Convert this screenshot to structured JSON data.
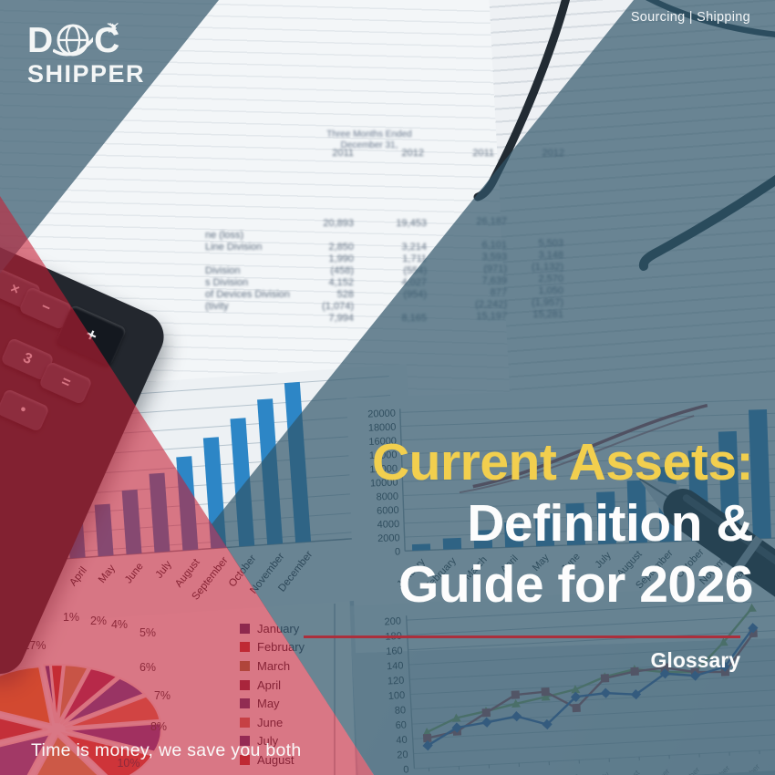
{
  "logo": {
    "d": "D",
    "c": "C",
    "shipper": "SHIPPER"
  },
  "header": {
    "services": "Sourcing | Shipping"
  },
  "title": {
    "line1": "Current Assets:",
    "line2": "Definition &",
    "line3": "Guide for 2026",
    "accent_color": "#f2cf4e"
  },
  "glossary": {
    "label": "Glossary"
  },
  "tagline": {
    "text": "Time is money, we save you both"
  },
  "colors": {
    "teal_overlay": "#30566a",
    "red_overlay": "#c81e34",
    "rule_red": "#ab2f3c",
    "bar_blue": "#2d82c4"
  },
  "calculator": {
    "keys": [
      "×",
      "−",
      "+",
      "3",
      "=",
      "•"
    ]
  },
  "spreadsheet": {
    "header_note": "Three Months Ended\nDecember 31,",
    "col_years": [
      "2011",
      "2012",
      "2011",
      "2012"
    ],
    "row_labels": [
      "ne (loss)",
      "Line Division",
      "",
      "Division",
      "s Division",
      "of Devices Division",
      "(tivity"
    ],
    "col_a": [
      "20,893",
      "",
      "2,850",
      "1,990",
      "(458)",
      "4,152",
      "528",
      "(1,074)",
      "7,994"
    ],
    "col_b": [
      "19,453",
      "",
      "3,214",
      "1,711",
      "(554)",
      "4,027",
      "(954)",
      "",
      "8,165"
    ],
    "col_c": [
      "26,187",
      "",
      "6,101",
      "3,593",
      "(971)",
      "7,639",
      "877",
      "(2,242)",
      "15,197"
    ],
    "col_d": [
      "",
      "",
      "5,503",
      "3,148",
      "(1,132)",
      "2,570",
      "1,050",
      "(1,957)",
      "15,281"
    ]
  },
  "charts": {
    "months": [
      "January",
      "February",
      "March",
      "April",
      "May",
      "June",
      "July",
      "August",
      "September",
      "October",
      "November",
      "December"
    ],
    "bar_large": {
      "type": "bar",
      "y_ticks": [
        0,
        2000,
        4000,
        6000,
        8000,
        10000,
        12000,
        14000,
        16000,
        18000,
        20000
      ],
      "ylim": [
        0,
        20000
      ],
      "values": [
        900,
        1600,
        2600,
        3600,
        4700,
        6000,
        7500,
        9000,
        10800,
        13000,
        15600,
        18600
      ],
      "bar_color": "#2d82c4",
      "trend_color": "#9c4850"
    },
    "bar_small": {
      "type": "bar",
      "values": [
        8,
        13,
        24,
        33,
        42,
        52,
        64,
        76,
        90,
        104,
        118,
        130
      ],
      "bar_color": "#2d86c6"
    },
    "line_chart": {
      "type": "line",
      "y_ticks": [
        0,
        20,
        40,
        60,
        80,
        100,
        120,
        140,
        160,
        180,
        200
      ],
      "ylim": [
        0,
        200
      ],
      "series": [
        {
          "color": "#86ac6a",
          "marker": "triangle",
          "values": [
            48,
            65,
            72,
            80,
            87,
            95,
            110,
            118,
            112,
            110,
            148,
            192
          ]
        },
        {
          "color": "#a05660",
          "marker": "square",
          "values": [
            40,
            47,
            70,
            92,
            94,
            70,
            108,
            115,
            118,
            110,
            108,
            158
          ]
        },
        {
          "color": "#3f6ab0",
          "marker": "diamond",
          "values": [
            30,
            52,
            57,
            63,
            50,
            85,
            88,
            84,
            110,
            105,
            115,
            165
          ]
        }
      ]
    },
    "legend_months": {
      "items": [
        {
          "label": "January",
          "color": "#3f3a72"
        },
        {
          "label": "February",
          "color": "#b23b35"
        },
        {
          "label": "March",
          "color": "#8f7d46"
        },
        {
          "label": "April",
          "color": "#7e3048"
        },
        {
          "label": "May",
          "color": "#45407c"
        },
        {
          "label": "June",
          "color": "#c4705e"
        },
        {
          "label": "July",
          "color": "#503d80"
        },
        {
          "label": "August",
          "color": "#b23b35"
        }
      ]
    },
    "pie": {
      "type": "pie",
      "slices": [
        {
          "label": "1%",
          "value": 1,
          "color": "#4c4492"
        },
        {
          "label": "2%",
          "value": 2,
          "color": "#bf4036"
        },
        {
          "label": "4%",
          "value": 4,
          "color": "#c9a160"
        },
        {
          "label": "5%",
          "value": 5,
          "color": "#a03a66"
        },
        {
          "label": "6%",
          "value": 6,
          "color": "#5a55a6"
        },
        {
          "label": "7%",
          "value": 7,
          "color": "#dd7a58"
        },
        {
          "label": "8%",
          "value": 8,
          "color": "#6b4b9e"
        },
        {
          "label": "10%",
          "value": 10,
          "color": "#d65342"
        },
        {
          "label": "",
          "value": 14,
          "color": "#d2ab62"
        },
        {
          "label": "",
          "value": 14,
          "color": "#6f61ab"
        },
        {
          "label": "",
          "value": 12,
          "color": "#bf4940"
        },
        {
          "label": "17%",
          "value": 17,
          "color": "#e0862e"
        }
      ]
    }
  }
}
